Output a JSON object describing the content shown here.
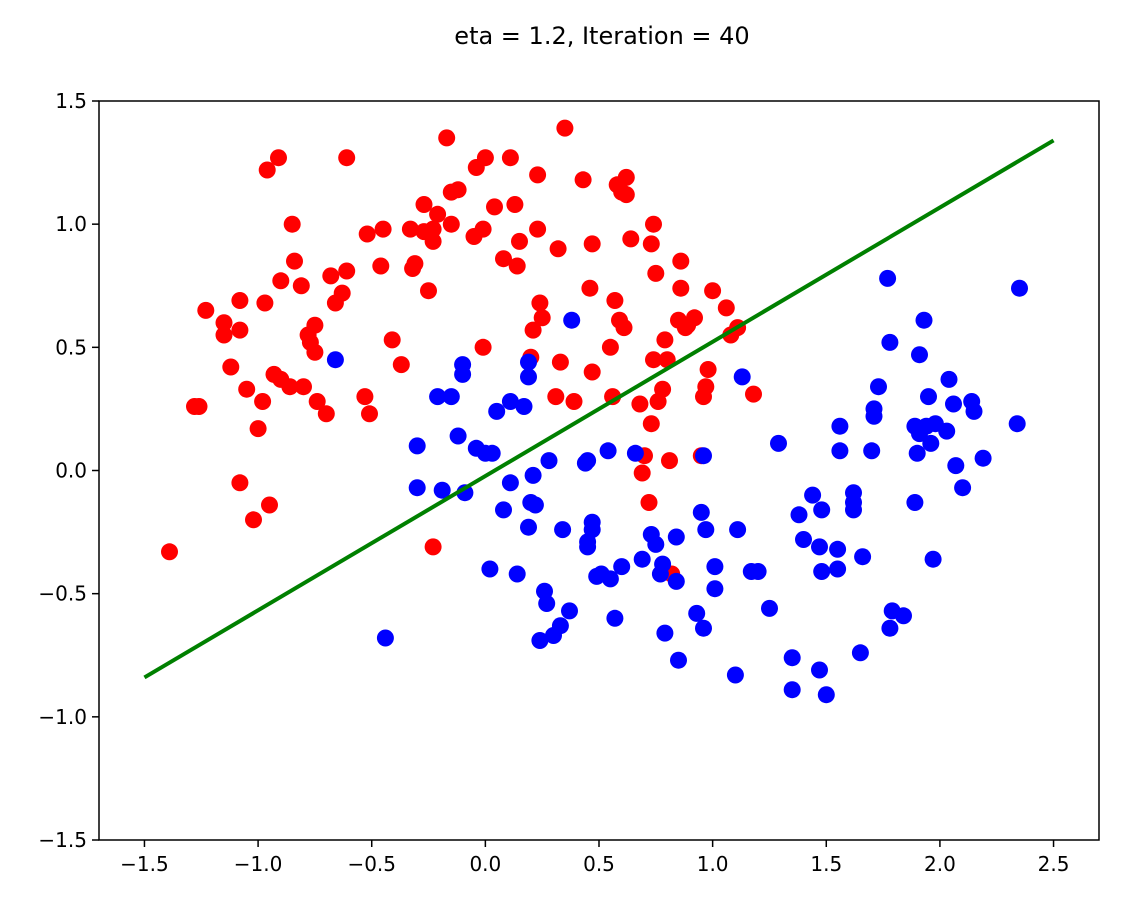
{
  "chart_data": {
    "type": "scatter",
    "title": "eta = 1.2, Iteration = 40",
    "xlabel": "",
    "ylabel": "",
    "xlim": [
      -1.7,
      2.7
    ],
    "ylim": [
      -1.5,
      1.5
    ],
    "x_ticks": [
      -1.5,
      -1.0,
      -0.5,
      0.0,
      0.5,
      1.0,
      1.5,
      2.0,
      2.5
    ],
    "x_tick_labels": [
      "−1.5",
      "−1.0",
      "−0.5",
      "0.0",
      "0.5",
      "1.0",
      "1.5",
      "2.0",
      "2.5"
    ],
    "y_ticks": [
      -1.5,
      -1.0,
      -0.5,
      0.0,
      0.5,
      1.0,
      1.5
    ],
    "y_tick_labels": [
      "−1.5",
      "−1.0",
      "−0.5",
      "0.0",
      "0.5",
      "1.0",
      "1.5"
    ],
    "grid": false,
    "colors": {
      "class_a": "#ff0000",
      "class_b": "#0000ff",
      "boundary": "#008000"
    },
    "series": [
      {
        "color": "#ff0000",
        "points": [
          [
            -1.39,
            -0.33
          ],
          [
            -1.28,
            0.26
          ],
          [
            -1.26,
            0.26
          ],
          [
            -1.23,
            0.65
          ],
          [
            -1.15,
            0.6
          ],
          [
            -1.15,
            0.55
          ],
          [
            -1.12,
            0.42
          ],
          [
            -1.08,
            0.69
          ],
          [
            -1.08,
            0.57
          ],
          [
            -1.08,
            -0.05
          ],
          [
            -1.05,
            0.33
          ],
          [
            -1.02,
            -0.2
          ],
          [
            -1.0,
            0.17
          ],
          [
            -0.98,
            0.28
          ],
          [
            -0.97,
            0.68
          ],
          [
            -0.96,
            1.22
          ],
          [
            -0.95,
            -0.14
          ],
          [
            -0.93,
            0.39
          ],
          [
            -0.91,
            1.27
          ],
          [
            -0.9,
            0.77
          ],
          [
            -0.9,
            0.37
          ],
          [
            -0.86,
            0.34
          ],
          [
            -0.85,
            1.0
          ],
          [
            -0.84,
            0.85
          ],
          [
            -0.81,
            0.75
          ],
          [
            -0.8,
            0.34
          ],
          [
            -0.78,
            0.55
          ],
          [
            -0.77,
            0.52
          ],
          [
            -0.75,
            0.59
          ],
          [
            -0.75,
            0.48
          ],
          [
            -0.74,
            0.28
          ],
          [
            -0.7,
            0.23
          ],
          [
            -0.68,
            0.79
          ],
          [
            -0.66,
            0.68
          ],
          [
            -0.63,
            0.72
          ],
          [
            -0.61,
            0.81
          ],
          [
            -0.61,
            1.27
          ],
          [
            -0.52,
            0.96
          ],
          [
            -0.53,
            0.3
          ],
          [
            -0.51,
            0.23
          ],
          [
            -0.46,
            0.83
          ],
          [
            -0.45,
            0.98
          ],
          [
            -0.41,
            0.53
          ],
          [
            -0.37,
            0.43
          ],
          [
            -0.33,
            0.98
          ],
          [
            -0.32,
            0.82
          ],
          [
            -0.31,
            0.84
          ],
          [
            -0.27,
            0.97
          ],
          [
            -0.27,
            1.08
          ],
          [
            -0.25,
            0.73
          ],
          [
            -0.23,
            0.98
          ],
          [
            -0.23,
            0.93
          ],
          [
            -0.21,
            1.04
          ],
          [
            -0.23,
            -0.31
          ],
          [
            -0.17,
            1.35
          ],
          [
            -0.15,
            1.0
          ],
          [
            -0.15,
            1.13
          ],
          [
            -0.12,
            1.14
          ],
          [
            -0.05,
            0.95
          ],
          [
            -0.04,
            1.23
          ],
          [
            0.0,
            1.27
          ],
          [
            -0.01,
            0.98
          ],
          [
            -0.01,
            0.5
          ],
          [
            0.04,
            1.07
          ],
          [
            0.08,
            0.86
          ],
          [
            0.11,
            1.27
          ],
          [
            0.13,
            1.08
          ],
          [
            0.14,
            0.83
          ],
          [
            0.15,
            0.93
          ],
          [
            0.2,
            0.46
          ],
          [
            0.21,
            0.57
          ],
          [
            0.23,
            0.98
          ],
          [
            0.23,
            1.2
          ],
          [
            0.24,
            0.68
          ],
          [
            0.25,
            0.62
          ],
          [
            0.31,
            0.3
          ],
          [
            0.32,
            0.9
          ],
          [
            0.33,
            0.44
          ],
          [
            0.35,
            1.39
          ],
          [
            0.39,
            0.28
          ],
          [
            0.43,
            1.18
          ],
          [
            0.46,
            0.74
          ],
          [
            0.47,
            0.92
          ],
          [
            0.47,
            0.4
          ],
          [
            0.55,
            0.5
          ],
          [
            0.56,
            0.3
          ],
          [
            0.57,
            0.69
          ],
          [
            0.58,
            1.16
          ],
          [
            0.59,
            0.61
          ],
          [
            0.6,
            1.13
          ],
          [
            0.61,
            0.58
          ],
          [
            0.62,
            1.19
          ],
          [
            0.62,
            1.12
          ],
          [
            0.64,
            0.94
          ],
          [
            0.68,
            0.27
          ],
          [
            0.69,
            -0.01
          ],
          [
            0.7,
            0.06
          ],
          [
            0.72,
            -0.13
          ],
          [
            0.73,
            0.92
          ],
          [
            0.73,
            0.19
          ],
          [
            0.74,
            1.0
          ],
          [
            0.74,
            0.45
          ],
          [
            0.75,
            0.8
          ],
          [
            0.76,
            0.28
          ],
          [
            0.78,
            0.33
          ],
          [
            0.79,
            0.53
          ],
          [
            0.8,
            0.45
          ],
          [
            0.81,
            0.04
          ],
          [
            0.82,
            -0.42
          ],
          [
            0.85,
            0.61
          ],
          [
            0.86,
            0.85
          ],
          [
            0.86,
            0.74
          ],
          [
            0.88,
            0.58
          ],
          [
            0.89,
            0.59
          ],
          [
            0.92,
            0.62
          ],
          [
            0.95,
            0.06
          ],
          [
            0.96,
            0.3
          ],
          [
            0.97,
            0.34
          ],
          [
            0.98,
            0.41
          ],
          [
            1.0,
            0.73
          ],
          [
            1.06,
            0.66
          ],
          [
            1.08,
            0.55
          ],
          [
            1.11,
            0.58
          ],
          [
            1.18,
            0.31
          ]
        ]
      },
      {
        "color": "#0000ff",
        "points": [
          [
            -0.66,
            0.45
          ],
          [
            -0.44,
            -0.68
          ],
          [
            -0.3,
            0.1
          ],
          [
            -0.3,
            -0.07
          ],
          [
            -0.21,
            0.3
          ],
          [
            -0.19,
            -0.08
          ],
          [
            -0.15,
            0.3
          ],
          [
            -0.12,
            0.14
          ],
          [
            -0.1,
            0.43
          ],
          [
            -0.1,
            0.39
          ],
          [
            -0.09,
            -0.09
          ],
          [
            -0.04,
            0.09
          ],
          [
            0.0,
            0.07
          ],
          [
            0.03,
            0.07
          ],
          [
            0.02,
            -0.4
          ],
          [
            0.05,
            0.24
          ],
          [
            0.08,
            -0.16
          ],
          [
            0.11,
            0.28
          ],
          [
            0.11,
            -0.05
          ],
          [
            0.14,
            -0.42
          ],
          [
            0.17,
            0.26
          ],
          [
            0.19,
            0.44
          ],
          [
            0.19,
            0.38
          ],
          [
            0.19,
            -0.23
          ],
          [
            0.2,
            -0.13
          ],
          [
            0.21,
            -0.02
          ],
          [
            0.22,
            -0.14
          ],
          [
            0.24,
            -0.69
          ],
          [
            0.26,
            -0.49
          ],
          [
            0.27,
            -0.54
          ],
          [
            0.28,
            0.04
          ],
          [
            0.3,
            -0.67
          ],
          [
            0.33,
            -0.63
          ],
          [
            0.34,
            -0.24
          ],
          [
            0.37,
            -0.57
          ],
          [
            0.38,
            0.61
          ],
          [
            0.44,
            0.03
          ],
          [
            0.45,
            -0.29
          ],
          [
            0.45,
            0.04
          ],
          [
            0.45,
            -0.31
          ],
          [
            0.47,
            -0.24
          ],
          [
            0.47,
            -0.21
          ],
          [
            0.49,
            -0.43
          ],
          [
            0.51,
            -0.42
          ],
          [
            0.54,
            0.08
          ],
          [
            0.55,
            -0.44
          ],
          [
            0.57,
            -0.6
          ],
          [
            0.6,
            -0.39
          ],
          [
            0.66,
            0.07
          ],
          [
            0.69,
            -0.36
          ],
          [
            0.73,
            -0.26
          ],
          [
            0.75,
            -0.3
          ],
          [
            0.77,
            -0.42
          ],
          [
            0.78,
            -0.38
          ],
          [
            0.79,
            -0.66
          ],
          [
            0.84,
            -0.27
          ],
          [
            0.84,
            -0.45
          ],
          [
            0.85,
            -0.77
          ],
          [
            0.93,
            -0.58
          ],
          [
            0.95,
            -0.17
          ],
          [
            0.96,
            -0.64
          ],
          [
            0.96,
            0.06
          ],
          [
            0.97,
            -0.24
          ],
          [
            1.01,
            -0.39
          ],
          [
            1.01,
            -0.48
          ],
          [
            1.11,
            -0.24
          ],
          [
            1.1,
            -0.83
          ],
          [
            1.13,
            0.38
          ],
          [
            1.17,
            -0.41
          ],
          [
            1.2,
            -0.41
          ],
          [
            1.25,
            -0.56
          ],
          [
            1.29,
            0.11
          ],
          [
            1.35,
            -0.76
          ],
          [
            1.35,
            -0.89
          ],
          [
            1.38,
            -0.18
          ],
          [
            1.4,
            -0.28
          ],
          [
            1.44,
            -0.1
          ],
          [
            1.47,
            -0.31
          ],
          [
            1.47,
            -0.81
          ],
          [
            1.48,
            -0.16
          ],
          [
            1.48,
            -0.41
          ],
          [
            1.5,
            -0.91
          ],
          [
            1.55,
            -0.32
          ],
          [
            1.55,
            -0.4
          ],
          [
            1.56,
            0.18
          ],
          [
            1.56,
            0.08
          ],
          [
            1.62,
            -0.09
          ],
          [
            1.62,
            -0.13
          ],
          [
            1.62,
            -0.16
          ],
          [
            1.65,
            -0.74
          ],
          [
            1.66,
            -0.35
          ],
          [
            1.7,
            0.08
          ],
          [
            1.71,
            0.25
          ],
          [
            1.71,
            0.22
          ],
          [
            1.73,
            0.34
          ],
          [
            1.77,
            0.78
          ],
          [
            1.78,
            0.52
          ],
          [
            1.78,
            -0.64
          ],
          [
            1.79,
            -0.57
          ],
          [
            1.84,
            -0.59
          ],
          [
            1.89,
            0.18
          ],
          [
            1.89,
            -0.13
          ],
          [
            1.9,
            0.07
          ],
          [
            1.91,
            0.47
          ],
          [
            1.91,
            0.15
          ],
          [
            1.93,
            0.61
          ],
          [
            1.94,
            0.18
          ],
          [
            1.95,
            0.3
          ],
          [
            1.96,
            0.11
          ],
          [
            1.97,
            -0.36
          ],
          [
            1.98,
            0.19
          ],
          [
            2.03,
            0.16
          ],
          [
            2.04,
            0.37
          ],
          [
            2.06,
            0.27
          ],
          [
            2.07,
            0.02
          ],
          [
            2.1,
            -0.07
          ],
          [
            2.14,
            0.28
          ],
          [
            2.15,
            0.24
          ],
          [
            2.19,
            0.05
          ],
          [
            2.34,
            0.19
          ],
          [
            2.35,
            0.74
          ]
        ]
      }
    ],
    "boundary_line": {
      "color": "#008000",
      "points": [
        [
          -1.5,
          -0.84
        ],
        [
          2.5,
          1.34
        ]
      ]
    }
  }
}
